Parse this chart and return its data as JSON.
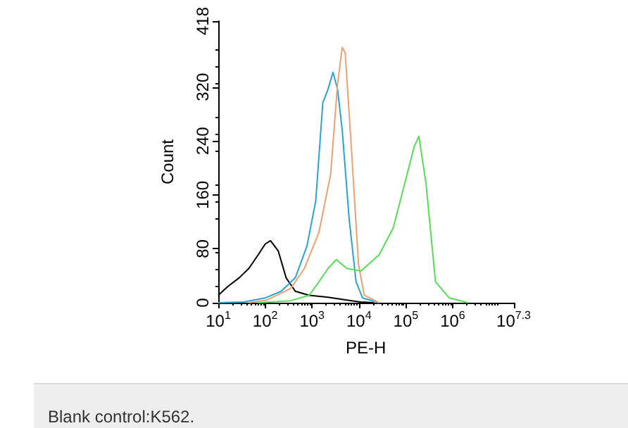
{
  "chart_data": {
    "type": "line",
    "xlabel": "PE-H",
    "ylabel": "Count",
    "log": "x",
    "marker": "none",
    "xlim": [
      10,
      19952623
    ],
    "xticks": [
      {
        "value": 10,
        "label": "10$^{1}$"
      },
      {
        "value": 100,
        "label": "10$^{2}$"
      },
      {
        "value": 1000,
        "label": "10$^{3}$"
      },
      {
        "value": 10000,
        "label": "10$^{4}$"
      },
      {
        "value": 100000,
        "label": "10$^{5}$"
      },
      {
        "value": 1000000,
        "label": "10$^{6}$"
      },
      {
        "value": 19952623,
        "label": "10$^{7.3}$"
      }
    ],
    "ylim": [
      0,
      418
    ],
    "yticks": [
      0,
      80,
      160,
      240,
      320,
      418
    ],
    "series": [
      {
        "color": "#000000",
        "x": [
          10,
          16,
          28,
          45,
          71,
          100,
          130,
          190,
          280,
          440,
          870,
          2200,
          5500,
          11000,
          21000
        ],
        "values": [
          11,
          24,
          37,
          51,
          71,
          87,
          92,
          77,
          37,
          17,
          11,
          8,
          4,
          1,
          0
        ]
      },
      {
        "color": "#29a3d6",
        "x": [
          10,
          35,
          100,
          220,
          440,
          780,
          1200,
          1700,
          2200,
          2800,
          3500,
          4400,
          6200,
          8700,
          12000,
          27000
        ],
        "values": [
          0,
          1,
          7,
          17,
          37,
          84,
          151,
          297,
          317,
          342,
          317,
          257,
          124,
          31,
          7,
          0
        ]
      },
      {
        "color": "#f0a070",
        "x": [
          45,
          110,
          350,
          690,
          1400,
          2500,
          3500,
          4400,
          5100,
          6900,
          9800,
          13000,
          27000
        ],
        "values": [
          0,
          4,
          21,
          51,
          104,
          191,
          324,
          379,
          371,
          231,
          57,
          11,
          0
        ]
      },
      {
        "color": "#55dd55",
        "x": [
          71,
          350,
          870,
          1400,
          2200,
          3300,
          5500,
          11000,
          27000,
          54000,
          95000,
          150000,
          190000,
          270000,
          430000,
          850000,
          2100000
        ],
        "values": [
          0,
          3,
          11,
          31,
          51,
          64,
          51,
          47,
          71,
          111,
          177,
          231,
          247,
          177,
          31,
          7,
          0
        ]
      }
    ],
    "annotations": [
      "Blank control:K562."
    ]
  }
}
